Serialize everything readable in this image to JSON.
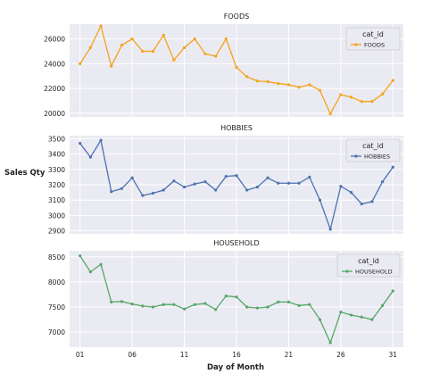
{
  "figure": {
    "ylabel": "Sales Qty",
    "xlabel": "Day of Month"
  },
  "chart_data": [
    {
      "type": "line",
      "title": "FOODS",
      "legend_title": "cat_id",
      "legend_position": "top-right",
      "grid": true,
      "color": "#f5a21b",
      "x": [
        1,
        2,
        3,
        4,
        5,
        6,
        7,
        8,
        9,
        10,
        11,
        12,
        13,
        14,
        15,
        16,
        17,
        18,
        19,
        20,
        21,
        22,
        23,
        24,
        25,
        26,
        27,
        28,
        29,
        30,
        31
      ],
      "series": [
        {
          "name": "FOODS",
          "values": [
            24000,
            25300,
            27050,
            23800,
            25500,
            26000,
            25000,
            25000,
            26300,
            24300,
            25300,
            26000,
            24800,
            24600,
            26000,
            23700,
            22950,
            22600,
            22550,
            22400,
            22300,
            22100,
            22300,
            21850,
            19950,
            21500,
            21300,
            20950,
            20950,
            21550,
            22650
          ]
        }
      ],
      "ylim": [
        19700,
        27200
      ],
      "yticks": [
        20000,
        22000,
        24000,
        26000
      ],
      "ytick_labels": [
        "20000",
        "22000",
        "24000",
        "26000"
      ],
      "xticks": [],
      "xtick_labels": []
    },
    {
      "type": "line",
      "title": "HOBBIES",
      "legend_title": "cat_id",
      "legend_position": "top-right",
      "grid": true,
      "color": "#4c72b0",
      "x": [
        1,
        2,
        3,
        4,
        5,
        6,
        7,
        8,
        9,
        10,
        11,
        12,
        13,
        14,
        15,
        16,
        17,
        18,
        19,
        20,
        21,
        22,
        23,
        24,
        25,
        26,
        27,
        28,
        29,
        30,
        31
      ],
      "series": [
        {
          "name": "HOBBIES",
          "values": [
            3470,
            3380,
            3490,
            3155,
            3175,
            3245,
            3130,
            3145,
            3165,
            3225,
            3185,
            3205,
            3220,
            3165,
            3255,
            3260,
            3165,
            3185,
            3245,
            3210,
            3210,
            3210,
            3250,
            3100,
            2910,
            3190,
            3150,
            3075,
            3090,
            3220,
            3315
          ]
        }
      ],
      "ylim": [
        2880,
        3520
      ],
      "yticks": [
        2900,
        3000,
        3100,
        3200,
        3300,
        3400,
        3500
      ],
      "ytick_labels": [
        "2900",
        "3000",
        "3100",
        "3200",
        "3300",
        "3400",
        "3500"
      ],
      "xticks": [],
      "xtick_labels": []
    },
    {
      "type": "line",
      "title": "HOUSEHOLD",
      "legend_title": "cat_id",
      "legend_position": "top-right",
      "grid": true,
      "color": "#55a868",
      "x": [
        1,
        2,
        3,
        4,
        5,
        6,
        7,
        8,
        9,
        10,
        11,
        12,
        13,
        14,
        15,
        16,
        17,
        18,
        19,
        20,
        21,
        22,
        23,
        24,
        25,
        26,
        27,
        28,
        29,
        30,
        31
      ],
      "series": [
        {
          "name": "HOUSEHOLD",
          "values": [
            8520,
            8200,
            8350,
            7600,
            7610,
            7560,
            7520,
            7500,
            7550,
            7550,
            7460,
            7550,
            7570,
            7450,
            7720,
            7700,
            7500,
            7480,
            7500,
            7600,
            7600,
            7530,
            7550,
            7250,
            6790,
            7400,
            7340,
            7300,
            7250,
            7530,
            7820
          ]
        }
      ],
      "ylim": [
        6700,
        8620
      ],
      "yticks": [
        7000,
        7500,
        8000,
        8500
      ],
      "ytick_labels": [
        "7000",
        "7500",
        "8000",
        "8500"
      ],
      "xticks": [
        1,
        6,
        11,
        16,
        21,
        26,
        31
      ],
      "xtick_labels": [
        "01",
        "06",
        "11",
        "16",
        "21",
        "26",
        "31"
      ]
    }
  ]
}
